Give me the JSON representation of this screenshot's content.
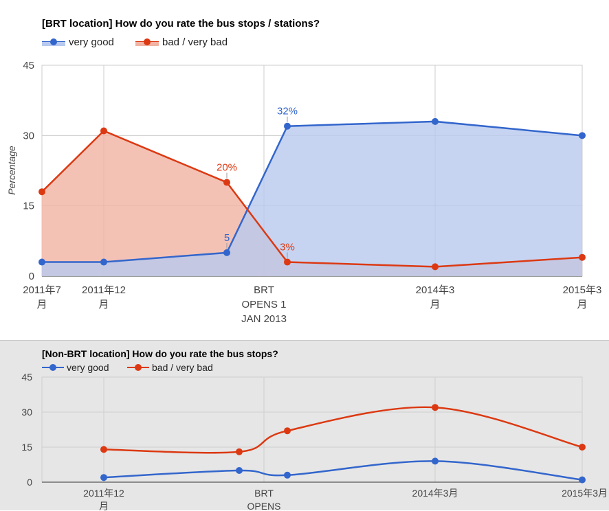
{
  "chart_data": [
    {
      "type": "area",
      "title": "[BRT location] How do you rate the bus stops / stations?",
      "ylabel": "Percentage",
      "ylim": [
        0,
        45
      ],
      "yticks": [
        "0",
        "15",
        "30",
        "45"
      ],
      "grid": true,
      "legend_position": "top-left",
      "x_categories": [
        {
          "lines": [
            "2011年7",
            "月"
          ]
        },
        {
          "lines": [
            "2011年12",
            "月"
          ]
        },
        {
          "lines": [
            ""
          ]
        },
        {
          "lines": [
            "BRT",
            "OPENS 1",
            "JAN 2013"
          ]
        },
        {
          "lines": [
            ""
          ]
        },
        {
          "lines": [
            "2014年3",
            "月"
          ]
        },
        {
          "lines": [
            "2015年3",
            "月"
          ]
        }
      ],
      "series": [
        {
          "name": "very good",
          "color": "#3366cc",
          "fill": "#b8c9ef",
          "points": [
            {
              "x": "2011年7月",
              "y": 3
            },
            {
              "x": "2011年12月",
              "y": 3
            },
            {
              "x": "",
              "y": 5,
              "label": "5"
            },
            {
              "x": "",
              "y": 32,
              "label": "32%"
            },
            {
              "x": "2014年3月",
              "y": 33
            },
            {
              "x": "2015年3月",
              "y": 30
            }
          ]
        },
        {
          "name": "bad / very bad",
          "color": "#dc3912",
          "fill": "#f1b3a3",
          "points": [
            {
              "x": "2011年7月",
              "y": 18
            },
            {
              "x": "2011年12月",
              "y": 31
            },
            {
              "x": "",
              "y": 20,
              "label": "20%"
            },
            {
              "x": "",
              "y": 3,
              "label": "3%"
            },
            {
              "x": "2014年3月",
              "y": 2
            },
            {
              "x": "2015年3月",
              "y": 4
            }
          ]
        }
      ]
    },
    {
      "type": "line",
      "title": "[Non-BRT location] How do you rate the bus stops?",
      "ylim": [
        0,
        45
      ],
      "yticks": [
        "0",
        "15",
        "30",
        "45"
      ],
      "grid": true,
      "legend_position": "top-left",
      "x_categories": [
        {
          "lines": [
            "2011年12",
            "月"
          ]
        },
        {
          "lines": [
            "BRT",
            "OPENS"
          ]
        },
        {
          "lines": [
            "2014年3月"
          ]
        },
        {
          "lines": [
            "2015年3月"
          ]
        }
      ],
      "series": [
        {
          "name": "very good",
          "color": "#3366cc",
          "smooth": true,
          "points": [
            {
              "x": "2011年12月",
              "y": 2
            },
            {
              "x": "",
              "y": 5
            },
            {
              "x": "",
              "y": 3
            },
            {
              "x": "2014年3月",
              "y": 9
            },
            {
              "x": "2015年3月",
              "y": 1
            }
          ]
        },
        {
          "name": "bad / very bad",
          "color": "#dc3912",
          "smooth": true,
          "points": [
            {
              "x": "2011年12月",
              "y": 14
            },
            {
              "x": "",
              "y": 13
            },
            {
              "x": "",
              "y": 22
            },
            {
              "x": "2014年3月",
              "y": 32
            },
            {
              "x": "2015年3月",
              "y": 15
            }
          ]
        }
      ]
    }
  ]
}
